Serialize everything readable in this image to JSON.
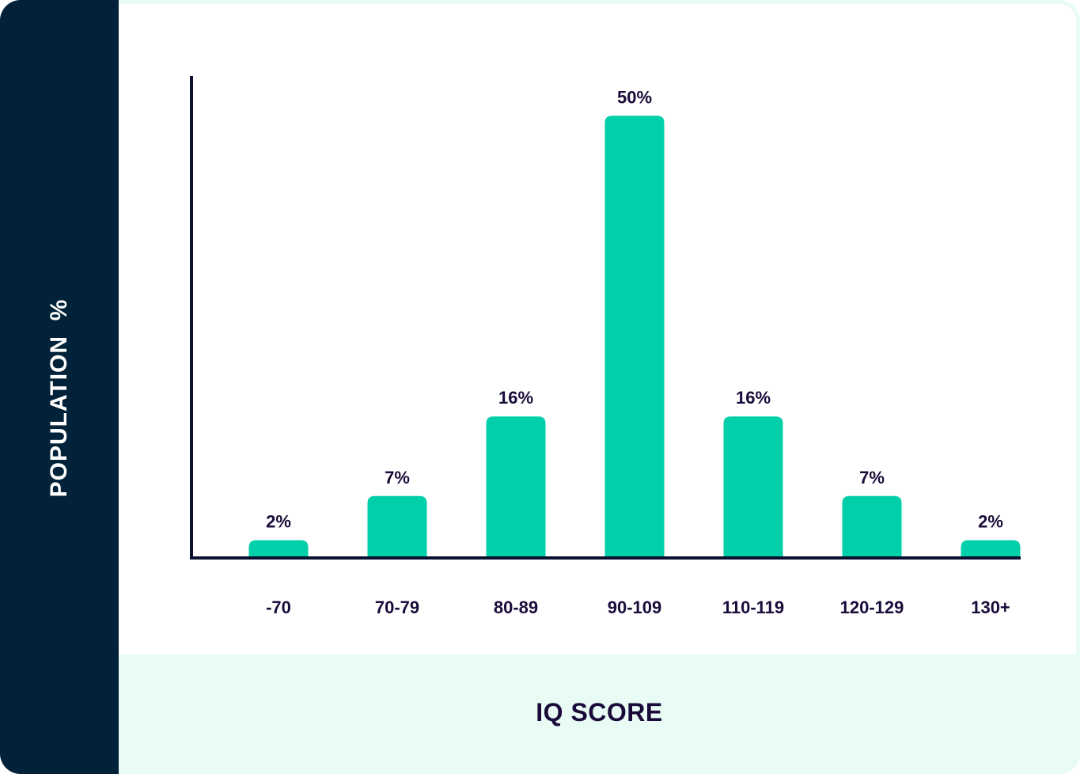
{
  "chart_data": {
    "type": "bar",
    "categories": [
      "-70",
      "70-79",
      "80-89",
      "90-109",
      "110-119",
      "120-129",
      "130+"
    ],
    "values": [
      2,
      7,
      16,
      50,
      16,
      7,
      2
    ],
    "value_labels": [
      "2%",
      "7%",
      "16%",
      "50%",
      "16%",
      "7%",
      "2%"
    ],
    "xlabel": "IQ SCORE",
    "ylabel": "POPULATION  %",
    "ylim": [
      0,
      54.5
    ],
    "grid": false,
    "colors": {
      "bar": "#00cfaa",
      "axis": "#0a1030",
      "text": "#1a0b3a",
      "panel": "#012238",
      "band": "#e8fbf4"
    }
  }
}
